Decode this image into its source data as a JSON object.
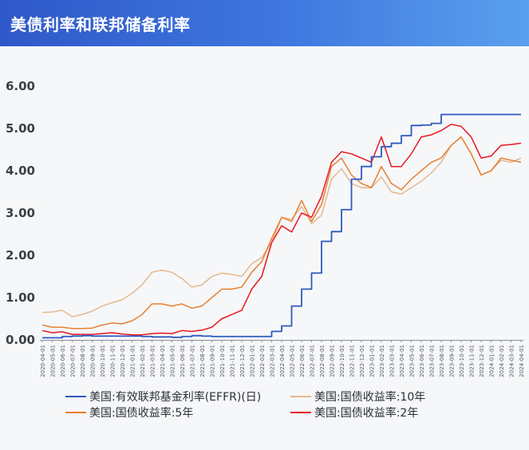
{
  "header": {
    "title": "美债利率和联邦储备利率"
  },
  "chart_data": {
    "type": "line",
    "title": "美债利率和联邦储备利率",
    "xlabel": "",
    "ylabel": "",
    "ylim": [
      0,
      6
    ],
    "yticks": [
      "0.00",
      "1.00",
      "2.00",
      "3.00",
      "4.00",
      "5.00",
      "6.00"
    ],
    "grid": false,
    "legend_position": "bottom",
    "x": [
      "2020-04-01",
      "2020-05-01",
      "2020-06-01",
      "2020-07-01",
      "2020-08-01",
      "2020-09-01",
      "2020-10-01",
      "2020-11-01",
      "2020-12-01",
      "2021-01-01",
      "2021-02-01",
      "2021-03-01",
      "2021-04-01",
      "2021-05-01",
      "2021-06-01",
      "2021-07-01",
      "2021-08-01",
      "2021-09-01",
      "2021-10-01",
      "2021-11-01",
      "2021-12-01",
      "2022-01-01",
      "2022-02-01",
      "2022-03-01",
      "2022-04-01",
      "2022-05-01",
      "2022-06-01",
      "2022-07-01",
      "2022-08-01",
      "2022-09-01",
      "2022-10-01",
      "2022-11-01",
      "2022-12-01",
      "2023-01-01",
      "2023-02-01",
      "2023-03-01",
      "2023-04-01",
      "2023-05-01",
      "2023-06-01",
      "2023-07-01",
      "2023-08-01",
      "2023-09-01",
      "2023-10-01",
      "2023-11-01",
      "2023-12-01",
      "2024-01-01",
      "2024-02-01",
      "2024-03-01",
      "2024-04-01"
    ],
    "series": [
      {
        "name": "美国:有效联邦基金利率(EFFR)(日)",
        "color": "#2e58c0",
        "values": [
          0.05,
          0.05,
          0.08,
          0.09,
          0.1,
          0.09,
          0.09,
          0.09,
          0.09,
          0.09,
          0.08,
          0.07,
          0.07,
          0.06,
          0.08,
          0.1,
          0.09,
          0.08,
          0.08,
          0.08,
          0.08,
          0.08,
          0.08,
          0.2,
          0.33,
          0.8,
          1.2,
          1.58,
          2.33,
          2.56,
          3.08,
          3.8,
          4.1,
          4.33,
          4.57,
          4.65,
          4.83,
          5.07,
          5.08,
          5.12,
          5.33,
          5.33,
          5.33,
          5.33,
          5.33,
          5.33,
          5.33,
          5.33,
          5.33
        ]
      },
      {
        "name": "美国:国债收益率:10年",
        "color": "#e3b98e",
        "values": [
          0.65,
          0.66,
          0.7,
          0.55,
          0.6,
          0.68,
          0.8,
          0.88,
          0.95,
          1.1,
          1.3,
          1.6,
          1.65,
          1.6,
          1.45,
          1.25,
          1.3,
          1.5,
          1.58,
          1.55,
          1.5,
          1.8,
          1.95,
          2.3,
          2.9,
          2.85,
          3.15,
          2.75,
          2.95,
          3.8,
          4.05,
          3.7,
          3.6,
          3.6,
          3.85,
          3.5,
          3.45,
          3.6,
          3.75,
          3.95,
          4.2,
          4.6,
          4.8,
          4.4,
          3.9,
          4.0,
          4.25,
          4.2,
          4.3
        ]
      },
      {
        "name": "美国:国债收益率:5年",
        "color": "#e87f30",
        "values": [
          0.35,
          0.3,
          0.3,
          0.27,
          0.27,
          0.28,
          0.35,
          0.4,
          0.38,
          0.45,
          0.6,
          0.85,
          0.85,
          0.8,
          0.85,
          0.75,
          0.8,
          1.0,
          1.2,
          1.2,
          1.25,
          1.6,
          1.85,
          2.4,
          2.9,
          2.8,
          3.3,
          2.8,
          3.2,
          4.1,
          4.3,
          3.9,
          3.7,
          3.6,
          4.1,
          3.7,
          3.55,
          3.8,
          4.0,
          4.2,
          4.3,
          4.6,
          4.8,
          4.4,
          3.9,
          4.0,
          4.3,
          4.25,
          4.2
        ]
      },
      {
        "name": "美国:国债收益率:2年",
        "color": "#e8171e",
        "values": [
          0.22,
          0.17,
          0.19,
          0.13,
          0.13,
          0.13,
          0.15,
          0.17,
          0.14,
          0.12,
          0.12,
          0.15,
          0.16,
          0.15,
          0.22,
          0.2,
          0.23,
          0.3,
          0.5,
          0.6,
          0.7,
          1.2,
          1.5,
          2.3,
          2.7,
          2.55,
          3.0,
          2.9,
          3.4,
          4.2,
          4.45,
          4.4,
          4.3,
          4.2,
          4.8,
          4.1,
          4.1,
          4.4,
          4.8,
          4.85,
          4.95,
          5.1,
          5.05,
          4.8,
          4.3,
          4.35,
          4.6,
          4.62,
          4.65
        ]
      }
    ]
  }
}
